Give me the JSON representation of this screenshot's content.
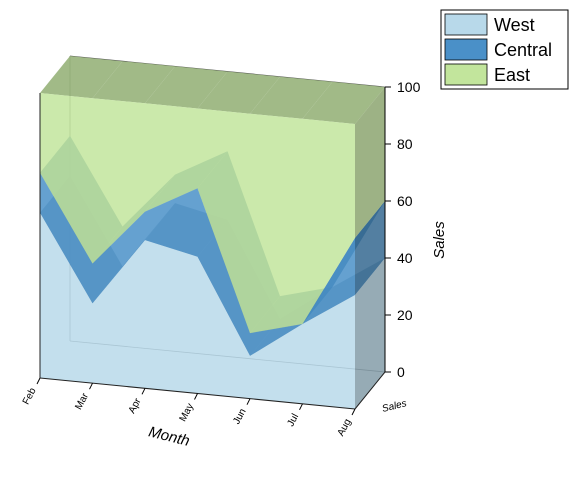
{
  "chart_data": {
    "type": "area",
    "stacked": true,
    "categories": [
      "Feb",
      "Mar",
      "Apr",
      "May",
      "Jun",
      "Jul",
      "Aug"
    ],
    "series": [
      {
        "name": "West",
        "values": [
          58,
          28,
          52,
          48,
          15,
          28,
          40
        ],
        "color": "#b8d9ea"
      },
      {
        "name": "Central",
        "values": [
          14,
          14,
          10,
          24,
          8,
          0,
          20
        ],
        "color": "#4a90c8"
      },
      {
        "name": "East",
        "values": [
          28,
          58,
          38,
          28,
          77,
          72,
          40
        ],
        "color": "#c2e59c"
      }
    ],
    "xlabel": "Month",
    "ylabel": "Sales",
    "zlabel": "Sales",
    "ylim": [
      0,
      100
    ],
    "yticks": [
      0,
      20,
      40,
      60,
      80,
      100
    ],
    "legend_position": "top-right",
    "grid": false
  }
}
